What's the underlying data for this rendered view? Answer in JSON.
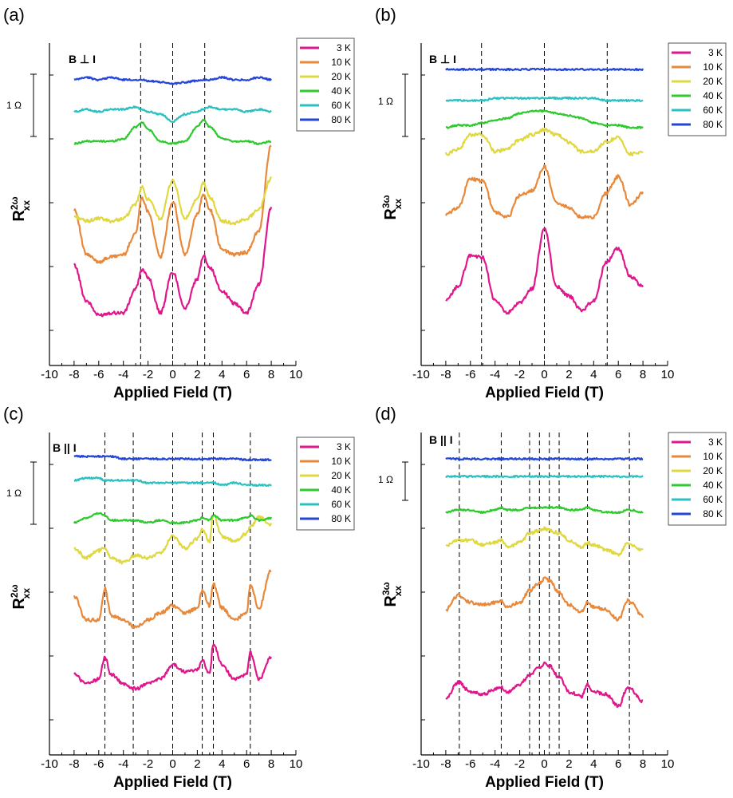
{
  "figure": {
    "legend_entries": [
      "3 K",
      "10 K",
      "20 K",
      "40 K",
      "60 K",
      "80 K"
    ],
    "legend_colors": [
      "#e0168c",
      "#e8883a",
      "#e0d840",
      "#2ec92e",
      "#2cc0c0",
      "#2446d6"
    ],
    "scale_bar_label": "1 Ω",
    "xlabel": "Applied Field (T)",
    "x_ticks": [
      "-10",
      "-8",
      "-6",
      "-4",
      "-2",
      "0",
      "2",
      "4",
      "6",
      "8",
      "10"
    ]
  },
  "chart_data": [
    {
      "type": "line",
      "panel": "(a)",
      "annotation": "B ⊥ I",
      "ylabel_main": "R",
      "ylabel_sup": "2ω",
      "ylabel_sub": "xx",
      "xlim": [
        -10,
        10
      ],
      "x": [
        -8,
        -7,
        -6,
        -5,
        -4,
        -3,
        -2.5,
        -2,
        -1,
        0,
        1,
        2,
        2.5,
        3,
        4,
        5,
        6,
        7,
        8
      ],
      "dashed_lines_x": [
        -2.6,
        0,
        2.6
      ],
      "series": [
        {
          "name": "3 K",
          "values": [
            1.3,
            0.55,
            0.25,
            0.3,
            0.3,
            0.8,
            1.2,
            1.05,
            0.3,
            1.15,
            0.4,
            1.0,
            1.5,
            1.25,
            0.75,
            0.5,
            0.3,
            0.9,
            2.5
          ]
        },
        {
          "name": "10 K",
          "values": [
            1.3,
            0.35,
            0.2,
            0.3,
            0.35,
            0.8,
            1.55,
            1.25,
            0.3,
            1.45,
            0.35,
            1.2,
            1.6,
            1.3,
            0.45,
            0.35,
            0.4,
            0.85,
            2.65
          ]
        },
        {
          "name": "20 K",
          "values": [
            0.15,
            0.05,
            0.1,
            0.05,
            0.1,
            0.4,
            0.75,
            0.5,
            0.1,
            0.9,
            0.1,
            0.5,
            0.85,
            0.55,
            0.05,
            0.0,
            0.1,
            0.3,
            0.95
          ]
        },
        {
          "name": "40 K",
          "values": [
            0.0,
            0.05,
            0.05,
            0.05,
            0.1,
            0.35,
            0.45,
            0.3,
            0.05,
            0.0,
            0.05,
            0.35,
            0.5,
            0.35,
            0.1,
            0.05,
            0.05,
            0.0,
            0.05
          ]
        },
        {
          "name": "60 K",
          "values": [
            0.0,
            0.05,
            0.0,
            0.05,
            0.05,
            0.1,
            0.05,
            0.0,
            -0.05,
            -0.2,
            -0.05,
            0.0,
            0.05,
            0.1,
            0.05,
            0.05,
            0.0,
            0.05,
            0.0
          ]
        },
        {
          "name": "80 K",
          "values": [
            0.0,
            0.05,
            0.0,
            0.05,
            0.0,
            0.0,
            0.0,
            -0.02,
            -0.05,
            -0.08,
            -0.05,
            -0.02,
            0.0,
            0.0,
            0.05,
            0.0,
            0.0,
            0.05,
            0.0
          ]
        }
      ]
    },
    {
      "type": "line",
      "panel": "(b)",
      "annotation": "B ⊥ I",
      "ylabel_main": "R",
      "ylabel_sup": "3ω",
      "ylabel_sub": "xx",
      "xlim": [
        -10,
        10
      ],
      "x": [
        -8,
        -7,
        -6,
        -5,
        -4,
        -3,
        -2,
        -1,
        0,
        1,
        2,
        3,
        4,
        5,
        6,
        7,
        8
      ],
      "dashed_lines_x": [
        -5.1,
        0,
        5.1
      ],
      "series": [
        {
          "name": "3 K",
          "values": [
            0.3,
            0.6,
            1.25,
            1.2,
            0.3,
            0.05,
            0.25,
            0.55,
            1.8,
            0.6,
            0.4,
            0.1,
            0.3,
            1.1,
            1.4,
            0.8,
            0.6
          ]
        },
        {
          "name": "10 K",
          "values": [
            0.35,
            0.5,
            1.1,
            1.05,
            0.4,
            0.3,
            0.75,
            0.85,
            1.35,
            0.6,
            0.5,
            0.3,
            0.3,
            0.8,
            1.15,
            0.55,
            0.8
          ]
        },
        {
          "name": "20 K",
          "values": [
            0.2,
            0.3,
            0.6,
            0.6,
            0.25,
            0.3,
            0.5,
            0.6,
            0.7,
            0.6,
            0.45,
            0.25,
            0.25,
            0.45,
            0.55,
            0.2,
            0.25
          ]
        },
        {
          "name": "40 K",
          "values": [
            0.0,
            0.05,
            0.05,
            0.1,
            0.15,
            0.2,
            0.3,
            0.35,
            0.35,
            0.3,
            0.25,
            0.2,
            0.1,
            0.05,
            0.05,
            0.0,
            0.0
          ]
        },
        {
          "name": "60 K",
          "values": [
            0.0,
            0.0,
            0.0,
            0.0,
            0.05,
            0.05,
            0.05,
            0.05,
            0.05,
            0.05,
            0.05,
            0.05,
            0.05,
            0.0,
            0.0,
            0.0,
            0.0
          ]
        },
        {
          "name": "80 K",
          "values": [
            0.0,
            0.0,
            0.0,
            0.0,
            0.0,
            0.0,
            0.0,
            0.0,
            0.0,
            0.0,
            0.0,
            0.0,
            0.0,
            0.0,
            0.0,
            0.0,
            0.0
          ]
        }
      ]
    },
    {
      "type": "line",
      "panel": "(c)",
      "annotation": "B || I",
      "ylabel_main": "R",
      "ylabel_sup": "2ω",
      "ylabel_sub": "xx",
      "xlim": [
        -10,
        10
      ],
      "x": [
        -8,
        -7,
        -6,
        -5.5,
        -5,
        -4,
        -3,
        -2,
        -1,
        0,
        1,
        2,
        2.4,
        3,
        3.3,
        4,
        5,
        6,
        6.3,
        7,
        8
      ],
      "dashed_lines_x": [
        -5.5,
        -3.2,
        0,
        2.4,
        3.3,
        6.3
      ],
      "series": [
        {
          "name": "3 K",
          "values": [
            0.5,
            0.3,
            0.4,
            0.85,
            0.5,
            0.3,
            0.2,
            0.3,
            0.4,
            0.7,
            0.55,
            0.6,
            0.8,
            0.5,
            1.15,
            0.7,
            0.4,
            0.5,
            0.95,
            0.4,
            0.85
          ]
        },
        {
          "name": "10 K",
          "values": [
            0.8,
            0.3,
            0.3,
            0.95,
            0.4,
            0.3,
            0.15,
            0.3,
            0.45,
            0.6,
            0.45,
            0.55,
            0.9,
            0.6,
            1.05,
            0.55,
            0.3,
            0.45,
            1.05,
            0.55,
            1.35
          ]
        },
        {
          "name": "20 K",
          "values": [
            0.3,
            0.1,
            0.25,
            0.3,
            0.1,
            0.0,
            0.15,
            0.1,
            0.2,
            0.55,
            0.3,
            0.5,
            0.7,
            0.45,
            1.0,
            0.55,
            0.45,
            0.6,
            0.75,
            0.95,
            0.8
          ]
        },
        {
          "name": "40 K",
          "values": [
            0.0,
            0.1,
            0.2,
            0.15,
            0.05,
            0.05,
            0.05,
            0.0,
            0.05,
            0.0,
            0.0,
            0.05,
            0.1,
            0.05,
            0.15,
            0.05,
            0.05,
            0.1,
            0.15,
            0.05,
            0.1
          ]
        },
        {
          "name": "60 K",
          "values": [
            0.05,
            0.1,
            0.1,
            0.05,
            0.05,
            0.05,
            0.05,
            0.0,
            0.0,
            0.0,
            0.0,
            0.0,
            0.0,
            0.0,
            0.0,
            -0.05,
            0.0,
            -0.05,
            -0.05,
            -0.05,
            -0.05
          ]
        },
        {
          "name": "80 K",
          "values": [
            0.05,
            0.05,
            0.05,
            0.05,
            0.05,
            0.0,
            0.0,
            0.0,
            0.0,
            0.0,
            0.0,
            0.0,
            0.0,
            0.0,
            0.0,
            0.0,
            0.0,
            -0.02,
            -0.02,
            -0.02,
            -0.02
          ]
        }
      ]
    },
    {
      "type": "line",
      "panel": "(d)",
      "annotation": "B || I",
      "ylabel_main": "R",
      "ylabel_sup": "3ω",
      "ylabel_sub": "xx",
      "xlim": [
        -10,
        10
      ],
      "x": [
        -8,
        -7,
        -6,
        -5,
        -4,
        -3.5,
        -3,
        -2,
        -1.2,
        -0.4,
        0,
        0.4,
        1.2,
        2,
        3,
        3.5,
        4,
        5,
        6,
        6.8,
        7,
        8
      ],
      "dashed_lines_x": [
        -6.9,
        -3.5,
        -1.2,
        -0.4,
        0.4,
        1.2,
        3.5,
        6.9
      ],
      "series": [
        {
          "name": "3 K",
          "values": [
            0.15,
            0.5,
            0.3,
            0.25,
            0.35,
            0.4,
            0.3,
            0.45,
            0.65,
            0.8,
            0.9,
            0.85,
            0.6,
            0.3,
            0.2,
            0.45,
            0.3,
            0.25,
            0.0,
            0.4,
            0.35,
            0.1
          ]
        },
        {
          "name": "10 K",
          "values": [
            0.35,
            0.65,
            0.5,
            0.45,
            0.5,
            0.55,
            0.4,
            0.5,
            0.75,
            0.9,
            1.0,
            0.95,
            0.7,
            0.45,
            0.3,
            0.5,
            0.4,
            0.35,
            0.15,
            0.55,
            0.5,
            0.2
          ]
        },
        {
          "name": "20 K",
          "values": [
            0.2,
            0.3,
            0.3,
            0.2,
            0.25,
            0.3,
            0.15,
            0.25,
            0.45,
            0.5,
            0.55,
            0.5,
            0.45,
            0.3,
            0.15,
            0.25,
            0.2,
            0.1,
            0.0,
            0.25,
            0.2,
            0.1
          ]
        },
        {
          "name": "40 K",
          "values": [
            0.0,
            0.05,
            0.05,
            0.0,
            0.05,
            0.1,
            0.05,
            0.05,
            0.1,
            0.1,
            0.1,
            0.1,
            0.1,
            0.05,
            0.05,
            0.1,
            0.05,
            0.0,
            0.0,
            0.05,
            0.05,
            0.0
          ]
        },
        {
          "name": "60 K",
          "values": [
            0.0,
            0.0,
            0.0,
            0.0,
            0.0,
            0.0,
            0.0,
            0.0,
            0.0,
            0.0,
            0.0,
            0.0,
            0.0,
            0.0,
            0.0,
            0.0,
            0.0,
            0.0,
            0.0,
            0.0,
            0.0,
            0.0
          ]
        },
        {
          "name": "80 K",
          "values": [
            0.0,
            0.0,
            0.0,
            0.0,
            0.0,
            0.0,
            0.0,
            0.0,
            0.0,
            0.0,
            0.0,
            0.0,
            0.0,
            0.0,
            0.0,
            0.0,
            0.0,
            0.0,
            0.0,
            0.0,
            0.0,
            0.0
          ]
        }
      ]
    }
  ]
}
